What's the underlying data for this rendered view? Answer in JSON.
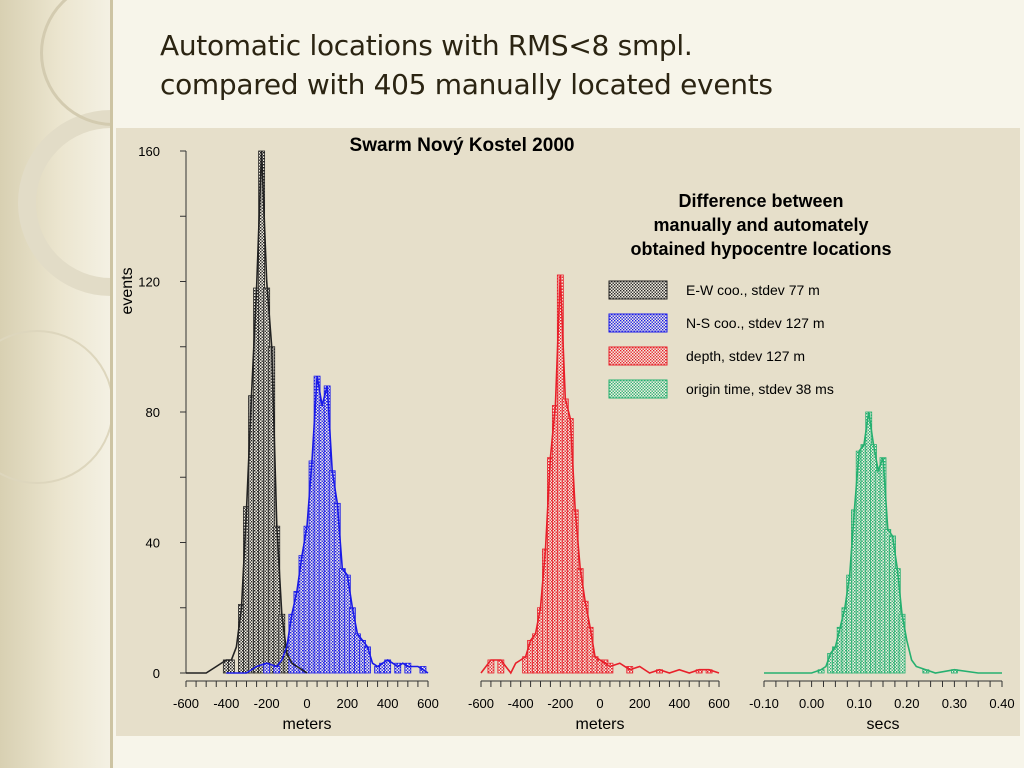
{
  "slide": {
    "title_line1": "Automatic locations with RMS<8 smpl.",
    "title_line2": "compared with 405 manually located events"
  },
  "colors": {
    "background": "#f7f5ea",
    "panel": "#e6dfca",
    "ew": "#222222",
    "ns": "#1a1ae8",
    "depth": "#e8202a",
    "time": "#26b070"
  },
  "chart_data": {
    "type": "bar",
    "title": "Swarm Nový Kostel 2000",
    "annotation": [
      "Difference between",
      "manually and automately",
      "obtained hypocentre locations"
    ],
    "ylabel": "events",
    "ylim": [
      0,
      160
    ],
    "y_ticks": [
      0,
      40,
      80,
      120,
      160
    ],
    "legend_position": "right",
    "panels": [
      {
        "xlabel": "meters",
        "xlim": [
          -600,
          600
        ],
        "x_ticks": [
          -600,
          -400,
          -200,
          0,
          200,
          400,
          600
        ],
        "x_tick_labels": [
          "-600",
          "-400",
          "-200",
          "0",
          "200",
          "400",
          "600"
        ],
        "series": [
          {
            "name": "E-W coo., stdev 77 m",
            "color": "#222222",
            "x": [
              -600,
              -500,
              -450,
              -400,
              -375,
              -350,
              -325,
              -300,
              -275,
              -250,
              -225,
              -200,
              -175,
              -150,
              -125,
              -100,
              -75,
              -50,
              -25,
              0
            ],
            "y": [
              0,
              0,
              2,
              4,
              4,
              8,
              20,
              50,
              85,
              118,
              160,
              120,
              100,
              45,
              18,
              6,
              3,
              2,
              1,
              0
            ]
          },
          {
            "name": "N-S coo., stdev 127 m",
            "color": "#1a1ae8",
            "x": [
              -400,
              -300,
              -250,
              -200,
              -150,
              -125,
              -100,
              -75,
              -50,
              -25,
              0,
              25,
              50,
              75,
              100,
              125,
              150,
              175,
              200,
              225,
              250,
              275,
              300,
              325,
              350,
              375,
              400,
              425,
              450,
              475,
              500,
              550,
              575,
              600
            ],
            "y": [
              0,
              0,
              2,
              3,
              2,
              4,
              8,
              18,
              25,
              36,
              45,
              65,
              91,
              82,
              88,
              62,
              52,
              32,
              30,
              20,
              12,
              10,
              8,
              3,
              2,
              3,
              4,
              3,
              2,
              3,
              2,
              2,
              1,
              0
            ]
          }
        ],
        "bars": [
          {
            "color": "#222222",
            "x": [
              -400,
              -375,
              -325,
              -300,
              -275,
              -250,
              -225,
              -200,
              -175,
              -150,
              -125,
              -100,
              -75,
              -50
            ],
            "y": [
              4,
              4,
              21,
              51,
              85,
              118,
              160,
              118,
              100,
              45,
              18,
              8,
              4,
              2
            ]
          },
          {
            "color": "#1a1ae8",
            "x": [
              -200,
              -150,
              -75,
              -50,
              -25,
              0,
              25,
              50,
              75,
              100,
              125,
              150,
              175,
              200,
              225,
              250,
              275,
              300,
              350,
              375,
              400,
              450,
              500,
              575
            ],
            "y": [
              3,
              2,
              18,
              25,
              36,
              45,
              65,
              91,
              82,
              88,
              62,
              52,
              32,
              30,
              20,
              12,
              10,
              8,
              2,
              3,
              4,
              3,
              3,
              2
            ]
          }
        ]
      },
      {
        "xlabel": "meters",
        "xlim": [
          -600,
          600
        ],
        "x_ticks": [
          -600,
          -400,
          -200,
          0,
          200,
          400,
          600
        ],
        "x_tick_labels": [
          "-600",
          "-400",
          "-200",
          "0",
          "200",
          "400",
          "600"
        ],
        "series": [
          {
            "name": "depth, stdev 127 m",
            "color": "#e8202a",
            "x": [
              -600,
              -550,
              -500,
              -450,
              -425,
              -400,
              -375,
              -350,
              -325,
              -300,
              -275,
              -250,
              -225,
              -200,
              -175,
              -150,
              -125,
              -100,
              -75,
              -50,
              -25,
              0,
              25,
              50,
              100,
              150,
              200,
              250,
              300,
              350,
              400,
              450,
              500,
              550,
              600
            ],
            "y": [
              0,
              4,
              4,
              0,
              3,
              4,
              5,
              10,
              12,
              20,
              38,
              66,
              82,
              122,
              84,
              78,
              50,
              32,
              22,
              14,
              5,
              4,
              3,
              2,
              3,
              1,
              2,
              0,
              1,
              0,
              1,
              0,
              1,
              1,
              0
            ]
          }
        ],
        "bars": [
          {
            "color": "#e8202a",
            "x": [
              -550,
              -500,
              -375,
              -350,
              -325,
              -300,
              -275,
              -250,
              -225,
              -200,
              -175,
              -150,
              -125,
              -100,
              -75,
              -50,
              -25,
              0,
              25,
              50,
              150,
              300,
              500,
              550
            ],
            "y": [
              4,
              4,
              5,
              10,
              12,
              20,
              38,
              66,
              82,
              122,
              84,
              78,
              50,
              32,
              22,
              14,
              5,
              4,
              4,
              3,
              2,
              1,
              1,
              1
            ]
          }
        ]
      },
      {
        "xlabel": "secs",
        "xlim": [
          -0.1,
          0.4
        ],
        "x_ticks": [
          -0.1,
          0.0,
          0.1,
          0.2,
          0.3,
          0.4
        ],
        "x_tick_labels": [
          "-0.10",
          "0.00",
          "0.10",
          "0.20",
          "0.30",
          "0.40"
        ],
        "series": [
          {
            "name": "origin time, stdev 38 ms",
            "color": "#26b070",
            "x": [
              -0.1,
              0.0,
              0.02,
              0.03,
              0.04,
              0.05,
              0.06,
              0.07,
              0.08,
              0.09,
              0.1,
              0.11,
              0.12,
              0.13,
              0.14,
              0.15,
              0.16,
              0.17,
              0.18,
              0.19,
              0.2,
              0.21,
              0.22,
              0.24,
              0.26,
              0.3,
              0.35,
              0.4
            ],
            "y": [
              0,
              0,
              1,
              2,
              6,
              8,
              14,
              20,
              30,
              50,
              68,
              70,
              80,
              70,
              62,
              66,
              44,
              42,
              32,
              18,
              10,
              4,
              2,
              1,
              0,
              1,
              0,
              0
            ]
          }
        ],
        "bars": [
          {
            "color": "#26b070",
            "x": [
              0.02,
              0.04,
              0.05,
              0.06,
              0.07,
              0.08,
              0.09,
              0.1,
              0.11,
              0.12,
              0.13,
              0.14,
              0.15,
              0.16,
              0.17,
              0.18,
              0.19,
              0.24,
              0.3
            ],
            "y": [
              1,
              6,
              8,
              14,
              20,
              30,
              50,
              68,
              70,
              80,
              70,
              62,
              66,
              44,
              42,
              32,
              18,
              1,
              1
            ]
          }
        ]
      }
    ]
  }
}
